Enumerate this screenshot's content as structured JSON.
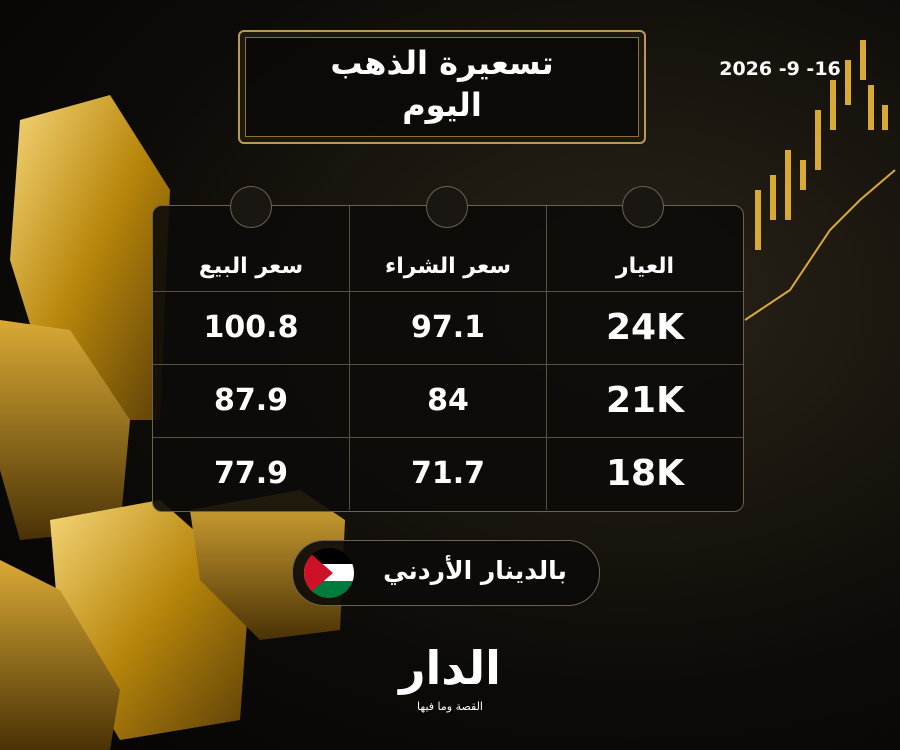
{
  "header": {
    "title_line1": "تسعيرة الذهب",
    "title_line2": "اليوم",
    "date": "2026 -9 -16"
  },
  "table": {
    "headers": [
      "العيار",
      "سعر الشراء",
      "سعر البيع"
    ],
    "rows": [
      [
        "24K",
        "97.1",
        "100.8"
      ],
      [
        "21K",
        "84",
        "87.9"
      ],
      [
        "18K",
        "71.7",
        "77.9"
      ]
    ]
  },
  "currency": "بالدينار الأردني",
  "logo": {
    "name": "الدار",
    "tagline": "القصة وما فيها"
  }
}
